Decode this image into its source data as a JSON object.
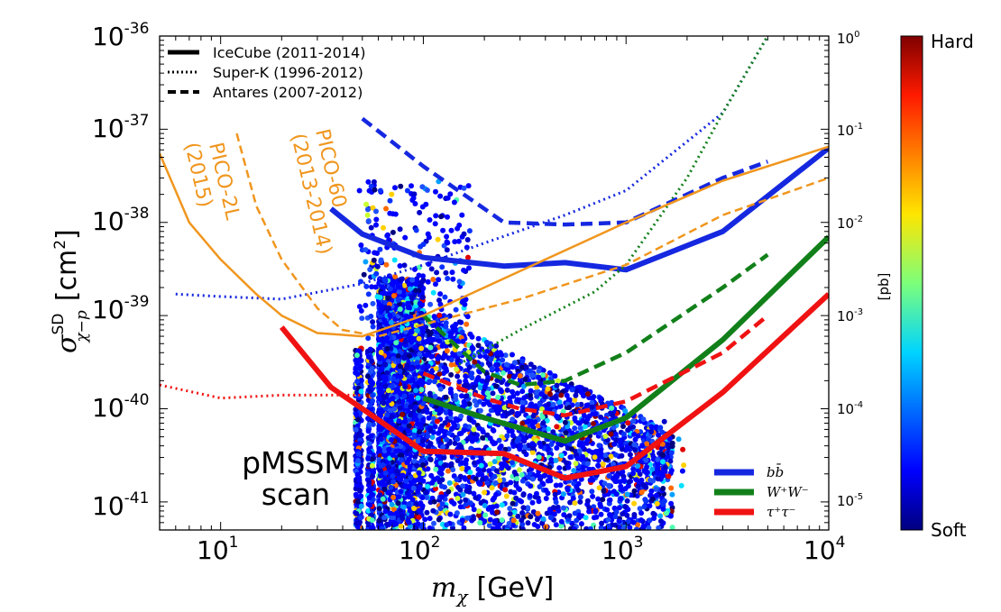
{
  "chart_data": {
    "type": "line",
    "xlabel": {
      "symbol": "m",
      "sub": "χ",
      "unit": "[GeV]"
    },
    "ylabel": {
      "symbol": "σ",
      "sup": "SD",
      "sub": "χ−p",
      "unit": "[cm",
      "unit_sup": "2",
      "unit_end": "]"
    },
    "right_label": "[pb]",
    "xscale": "log",
    "yscale": "log",
    "xlim": [
      5,
      10000
    ],
    "ylim": [
      5e-42,
      1e-36
    ],
    "x_ticks": [
      {
        "base": "10",
        "exp": "1",
        "v": 10
      },
      {
        "base": "10",
        "exp": "2",
        "v": 100
      },
      {
        "base": "10",
        "exp": "3",
        "v": 1000
      },
      {
        "base": "10",
        "exp": "4",
        "v": 10000
      }
    ],
    "y_ticks": [
      {
        "base": "10",
        "exp": "-41",
        "v": 1e-41
      },
      {
        "base": "10",
        "exp": "-40",
        "v": 1e-40
      },
      {
        "base": "10",
        "exp": "-39",
        "v": 1e-39
      },
      {
        "base": "10",
        "exp": "-38",
        "v": 1e-38
      },
      {
        "base": "10",
        "exp": "-37",
        "v": 1e-37
      },
      {
        "base": "10",
        "exp": "-36",
        "v": 1e-36
      }
    ],
    "right_ticks": [
      {
        "base": "10",
        "exp": "-5",
        "v": 1e-41
      },
      {
        "base": "10",
        "exp": "-4",
        "v": 1e-40
      },
      {
        "base": "10",
        "exp": "-3",
        "v": 1e-39
      },
      {
        "base": "10",
        "exp": "-2",
        "v": 1e-38
      },
      {
        "base": "10",
        "exp": "-1",
        "v": 1e-37
      },
      {
        "base": "10",
        "exp": "0",
        "v": 1e-36
      }
    ],
    "legend_styles": [
      {
        "label": "IceCube (2011-2014)",
        "style": "solid"
      },
      {
        "label": "Super-K (1996-2012)",
        "style": "dotted"
      },
      {
        "label": "Antares (2007-2012)",
        "style": "dashed"
      }
    ],
    "legend_styles_position": "top-left",
    "legend_channels": [
      {
        "label_base": "b",
        "label_sup": "",
        "label_parts": [
          [
            "b",
            ""
          ],
          [
            "b̄",
            ""
          ]
        ],
        "text": "bb̄",
        "color": "#1528e0"
      },
      {
        "text": "W⁺W⁻",
        "color": "#12801a"
      },
      {
        "text": "τ⁺τ⁻",
        "color": "#f01212"
      }
    ],
    "legend_channels_position": "bottom-right",
    "colorbar": {
      "top_label": "Hard",
      "bottom_label": "Soft"
    },
    "annotations": [
      {
        "text": "pMSSM",
        "kind": "scan"
      },
      {
        "text": "scan",
        "kind": "scan"
      },
      {
        "text": "PICO-2L",
        "kind": "pico"
      },
      {
        "text": "(2015)",
        "kind": "pico"
      },
      {
        "text": "PICO-60",
        "kind": "pico"
      },
      {
        "text": "(2013-2014)",
        "kind": "pico"
      }
    ],
    "series": [
      {
        "name": "IceCube (2011-2014)",
        "channel": "bb̄",
        "style": "solid",
        "color": "#1528e0",
        "x": [
          35,
          50,
          100,
          250,
          500,
          1000,
          3000,
          10000
        ],
        "y": [
          1.4e-38,
          7.5e-39,
          4.2e-39,
          3.4e-39,
          3.7e-39,
          3.1e-39,
          8e-39,
          6.3e-38
        ]
      },
      {
        "name": "IceCube (2011-2014)",
        "channel": "W⁺W⁻",
        "style": "solid",
        "color": "#12801a",
        "x": [
          100,
          200,
          500,
          1000,
          3000,
          10000
        ],
        "y": [
          1.3e-40,
          8e-41,
          4.5e-41,
          8e-41,
          5.5e-40,
          7e-39
        ]
      },
      {
        "name": "IceCube (2011-2014)",
        "channel": "τ⁺τ⁻",
        "style": "solid",
        "color": "#f01212",
        "x": [
          20,
          35,
          50,
          100,
          250,
          500,
          1000,
          3000,
          10000
        ],
        "y": [
          7.5e-40,
          1.7e-40,
          1e-40,
          3.5e-41,
          3.3e-41,
          1.8e-41,
          2.4e-41,
          1.5e-40,
          1.7e-39
        ]
      },
      {
        "name": "Super-K (1996-2012)",
        "channel": "bb̄",
        "style": "dotted",
        "color": "#1528e0",
        "x": [
          6,
          10,
          20,
          50,
          100,
          200,
          500,
          1000,
          3000,
          5000
        ],
        "y": [
          1.7e-39,
          1.6e-39,
          1.5e-39,
          2.2e-39,
          3.5e-39,
          6e-39,
          1.2e-38,
          2.2e-38,
          1.5e-37,
          1e-36
        ]
      },
      {
        "name": "Super-K (1996-2012)",
        "channel": "W⁺W⁻",
        "style": "dotted",
        "color": "#12801a",
        "x": [
          150,
          300,
          700,
          1000,
          2000,
          3000,
          5000
        ],
        "y": [
          3e-40,
          7e-40,
          1.8e-39,
          3.5e-39,
          3e-38,
          1.5e-37,
          1e-36
        ]
      },
      {
        "name": "Super-K (1996-2012)",
        "channel": "τ⁺τ⁻",
        "style": "dotted",
        "color": "#f01212",
        "x": [
          5,
          10,
          20,
          40,
          50
        ],
        "y": [
          1.8e-40,
          1.3e-40,
          1.4e-40,
          1.4e-40,
          1.4e-40
        ]
      },
      {
        "name": "Antares (2007-2012)",
        "channel": "bb̄",
        "style": "dashed",
        "color": "#1528e0",
        "x": [
          50,
          100,
          250,
          500,
          1000,
          3000,
          5000
        ],
        "y": [
          1.3e-37,
          4e-38,
          1e-38,
          9.5e-39,
          1e-38,
          3e-38,
          4.5e-38
        ]
      },
      {
        "name": "Antares (2007-2012)",
        "channel": "W⁺W⁻",
        "style": "dashed",
        "color": "#12801a",
        "x": [
          100,
          200,
          300,
          500,
          1000,
          3000,
          5000
        ],
        "y": [
          1e-39,
          2.5e-40,
          1.8e-40,
          2e-40,
          4e-40,
          2e-39,
          4.5e-39
        ]
      },
      {
        "name": "Antares (2007-2012)",
        "channel": "τ⁺τ⁻",
        "style": "dashed",
        "color": "#f01212",
        "x": [
          100,
          200,
          300,
          500,
          1000,
          3000,
          5000
        ],
        "y": [
          2.4e-40,
          1.3e-40,
          1e-40,
          8.5e-41,
          1.2e-40,
          4e-40,
          1e-39
        ]
      },
      {
        "name": "PICO-2L",
        "style": "solid",
        "color": "#f0961e",
        "x": [
          5,
          7,
          10,
          15,
          20,
          30,
          50,
          100,
          300,
          1000,
          3000,
          10000
        ],
        "y": [
          5.5e-38,
          1e-38,
          4e-39,
          1.7e-39,
          1e-39,
          6.5e-40,
          6e-40,
          1e-39,
          3e-39,
          1e-38,
          2.8e-38,
          6.5e-38
        ]
      },
      {
        "name": "PICO-60",
        "style": "dashed",
        "color": "#f0961e",
        "x": [
          12,
          15,
          20,
          30,
          40,
          60,
          100,
          300,
          1000,
          3000,
          10000
        ],
        "y": [
          9e-38,
          1.5e-38,
          4e-39,
          1.2e-39,
          7e-40,
          6e-40,
          8e-40,
          1.5e-39,
          3.5e-39,
          1.2e-38,
          3e-38
        ]
      }
    ],
    "scatter": {
      "description": "pMSSM model points colored by spectrum hardness",
      "x_range": [
        45,
        2000
      ],
      "y_range": [
        5e-42,
        3e-38
      ]
    }
  }
}
